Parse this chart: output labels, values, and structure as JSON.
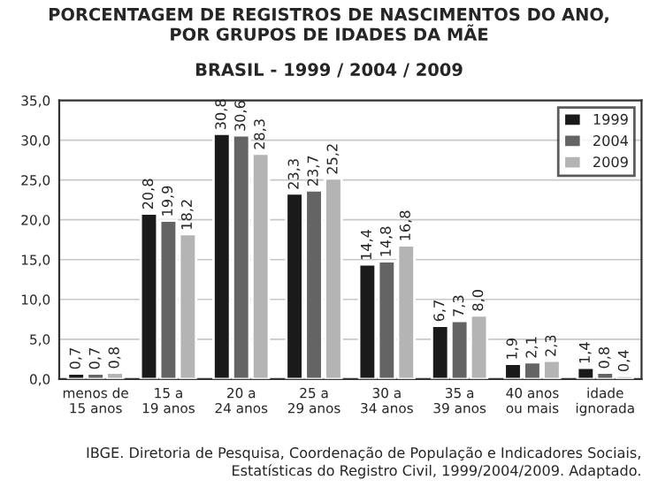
{
  "chart_data": {
    "type": "bar",
    "title": "PORCENTAGEM DE REGISTROS DE NASCIMENTOS DO ANO,\nPOR GRUPOS DE IDADES DA MÃE",
    "subtitle": "BRASIL - 1999 / 2004 / 2009",
    "categories": [
      "menos de\n15 anos",
      "15 a\n19 anos",
      "20 a\n24 anos",
      "25 a\n29 anos",
      "30 a\n34 anos",
      "35 a\n39 anos",
      "40 anos\nou mais",
      "idade\nignorada"
    ],
    "series": [
      {
        "name": "1999",
        "color": "#1a1a1a",
        "values": [
          0.7,
          20.8,
          30.8,
          23.3,
          14.4,
          6.7,
          1.9,
          1.4
        ],
        "value_labels": [
          "0,7",
          "20,8",
          "30,8",
          "23,3",
          "14,4",
          "6,7",
          "1,9",
          "1,4"
        ]
      },
      {
        "name": "2004",
        "color": "#646464",
        "values": [
          0.7,
          19.9,
          30.6,
          23.7,
          14.8,
          7.3,
          2.1,
          0.8
        ],
        "value_labels": [
          "0,7",
          "19,9",
          "30,6",
          "23,7",
          "14,8",
          "7,3",
          "2,1",
          "0,8"
        ]
      },
      {
        "name": "2009",
        "color": "#b4b4b4",
        "values": [
          0.8,
          18.2,
          28.3,
          25.2,
          16.8,
          8.0,
          2.3,
          0.4
        ],
        "value_labels": [
          "0,8",
          "18,2",
          "28,3",
          "25,2",
          "16,8",
          "8,0",
          "2,3",
          "0,4"
        ]
      }
    ],
    "ylim": [
      0,
      35
    ],
    "yticks": [
      {
        "value": 0,
        "label": "0,0"
      },
      {
        "value": 5,
        "label": "5,0"
      },
      {
        "value": 10,
        "label": "10,0"
      },
      {
        "value": 15,
        "label": "15,0"
      },
      {
        "value": 20,
        "label": "20,0"
      },
      {
        "value": 25,
        "label": "25,0"
      },
      {
        "value": 30,
        "label": "30,0"
      },
      {
        "value": 35,
        "label": "35,0"
      }
    ],
    "grid": "y",
    "legend": "top right",
    "annotations": [
      "IBGE. Diretoria de Pesquisa, Coordenação de População e Indicadores Sociais, Estatísticas do Registro Civil, 1999/2004/2009. Adaptado."
    ]
  }
}
